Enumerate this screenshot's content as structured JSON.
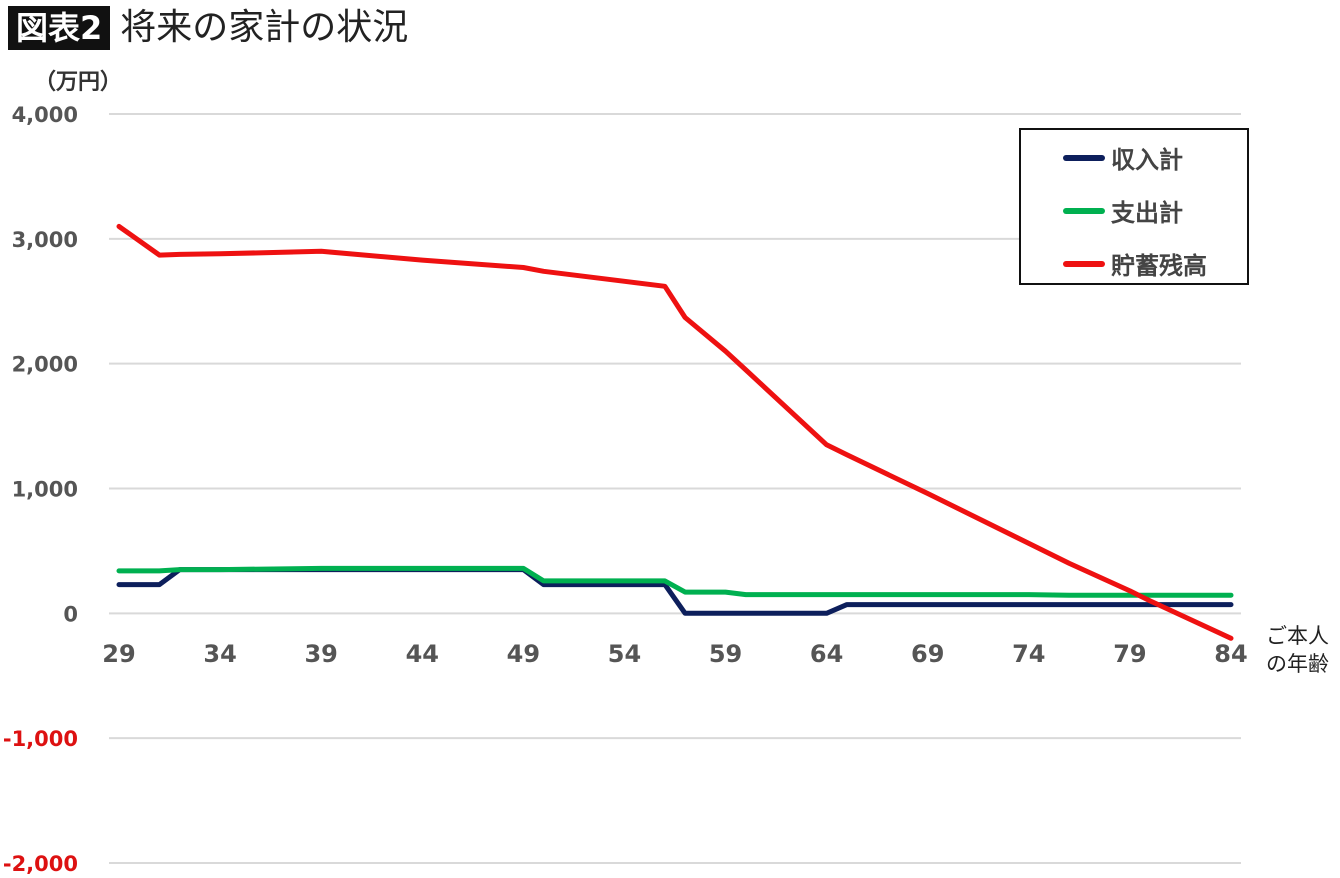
{
  "header": {
    "tag": "図表2",
    "title": "将来の家計の状況"
  },
  "chart_data": {
    "type": "line",
    "unit_label": "（万円）",
    "x_unit_label": "ご本人\nの年齢",
    "x": [
      29,
      31,
      32,
      34,
      39,
      44,
      49,
      50,
      54,
      56,
      57,
      59,
      60,
      64,
      65,
      69,
      74,
      76,
      79,
      80,
      84
    ],
    "x_ticks": [
      "29",
      "34",
      "39",
      "44",
      "49",
      "54",
      "59",
      "64",
      "69",
      "74",
      "79",
      "84"
    ],
    "y_ticks": [
      "4,000",
      "3,000",
      "2,000",
      "1,000",
      "0",
      "-1,000",
      "-2,000"
    ],
    "ylim": [
      -2000,
      4000
    ],
    "xlim": [
      29,
      84
    ],
    "grid": true,
    "legend_position": "top-right",
    "series": [
      {
        "name": "収入計",
        "color": "#0d1f5c",
        "values": [
          230,
          230,
          350,
          350,
          350,
          350,
          350,
          230,
          230,
          230,
          0,
          0,
          0,
          0,
          70,
          70,
          70,
          70,
          70,
          70,
          70
        ]
      },
      {
        "name": "支出計",
        "color": "#00b050",
        "values": [
          340,
          340,
          350,
          350,
          360,
          360,
          360,
          260,
          260,
          260,
          170,
          170,
          150,
          150,
          150,
          150,
          150,
          145,
          145,
          145,
          145
        ]
      },
      {
        "name": "貯蓄残高",
        "color": "#ee1111",
        "values": [
          3100,
          2870,
          2875,
          2880,
          2900,
          2830,
          2770,
          2740,
          2660,
          2620,
          2370,
          2100,
          1950,
          1350,
          1270,
          960,
          560,
          400,
          180,
          100,
          -200
        ]
      }
    ],
    "negative_tick_color": "#dd1111",
    "tick_color": "#555555",
    "grid_color": "#d9d9d9"
  }
}
